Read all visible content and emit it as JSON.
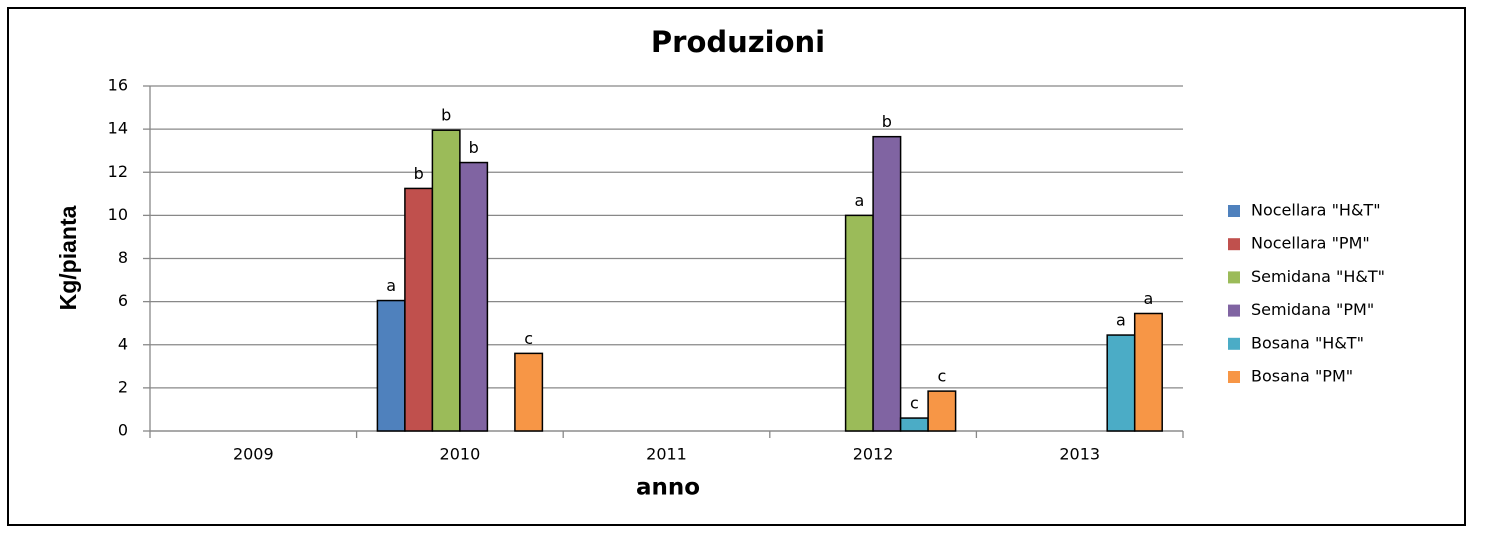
{
  "chart_data": {
    "type": "bar",
    "title": "Produzioni",
    "x_label": "anno",
    "y_label": "Kg/pianta",
    "categories": [
      "2009",
      "2010",
      "2011",
      "2012",
      "2013"
    ],
    "series": [
      {
        "name": "Nocellara \"H&T\"",
        "color": "#4f81bd",
        "values": [
          null,
          6.05,
          null,
          null,
          null
        ],
        "letters": [
          null,
          "a",
          null,
          null,
          null
        ]
      },
      {
        "name": "Nocellara \"PM\"",
        "color": "#c0504d",
        "values": [
          null,
          11.25,
          null,
          null,
          null
        ],
        "letters": [
          null,
          "b",
          null,
          null,
          null
        ]
      },
      {
        "name": "Semidana \"H&T\"",
        "color": "#9bbb59",
        "values": [
          null,
          13.95,
          null,
          10,
          null
        ],
        "letters": [
          null,
          "b",
          null,
          "a",
          null
        ]
      },
      {
        "name": "Semidana \"PM\"",
        "color": "#8064a2",
        "values": [
          null,
          12.45,
          null,
          13.65,
          null
        ],
        "letters": [
          null,
          "b",
          null,
          "b",
          null
        ]
      },
      {
        "name": "Bosana \"H&T\"",
        "color": "#4bacc6",
        "values": [
          null,
          null,
          null,
          0.6,
          4.45
        ],
        "letters": [
          null,
          null,
          null,
          "c",
          "a"
        ]
      },
      {
        "name": "Bosana \"PM\"",
        "color": "#f79646",
        "values": [
          null,
          3.6,
          null,
          1.85,
          5.45
        ],
        "letters": [
          null,
          "c",
          null,
          "c",
          "a"
        ]
      }
    ],
    "ylim": [
      0,
      16
    ],
    "yticks": [
      0,
      2,
      4,
      6,
      8,
      10,
      12,
      14,
      16
    ],
    "grid": true,
    "legend": "right"
  }
}
